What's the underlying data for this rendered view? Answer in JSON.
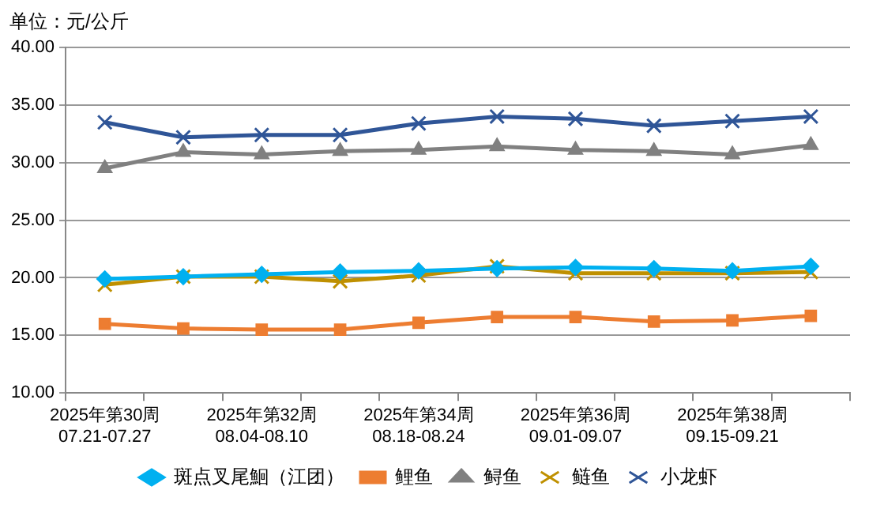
{
  "chart_data": {
    "type": "line",
    "ylabel": "单位：元/公斤",
    "categories": [
      "2025年第30周\n07.21-07.27",
      null,
      "2025年第32周\n08.04-08.10",
      null,
      "2025年第34周\n08.18-08.24",
      null,
      "2025年第36周\n09.01-09.07",
      null,
      "2025年第38周\n09.15-09.21",
      null
    ],
    "series": [
      {
        "name": "斑点叉尾鮰（江团）",
        "color": "#00b0f0",
        "marker": "diamond",
        "values": [
          19.9,
          20.1,
          20.3,
          20.5,
          20.6,
          20.8,
          20.9,
          20.8,
          20.6,
          21.0
        ]
      },
      {
        "name": "鲤鱼",
        "color": "#ed7d31",
        "marker": "square",
        "values": [
          16.0,
          15.6,
          15.5,
          15.5,
          16.1,
          16.6,
          16.6,
          16.2,
          16.3,
          16.7
        ]
      },
      {
        "name": "鲟鱼",
        "color": "#808080",
        "marker": "triangle",
        "values": [
          29.5,
          30.9,
          30.7,
          31.0,
          31.1,
          31.4,
          31.1,
          31.0,
          30.7,
          31.5
        ]
      },
      {
        "name": "鲢鱼",
        "color": "#bf9000",
        "marker": "cross",
        "values": [
          19.4,
          20.1,
          20.1,
          19.7,
          20.2,
          21.0,
          20.4,
          20.4,
          20.4,
          20.5
        ]
      },
      {
        "name": "小龙虾",
        "color": "#2f5597",
        "marker": "cross",
        "values": [
          33.5,
          32.2,
          32.4,
          32.4,
          33.4,
          34.0,
          33.8,
          33.2,
          33.6,
          34.0
        ]
      }
    ],
    "ylim": [
      10,
      40
    ],
    "yticks": [
      {
        "value": 10,
        "label": "10.00"
      },
      {
        "value": 15,
        "label": "15.00"
      },
      {
        "value": 20,
        "label": "20.00"
      },
      {
        "value": 25,
        "label": "25.00"
      },
      {
        "value": 30,
        "label": "30.00"
      },
      {
        "value": 35,
        "label": "35.00"
      },
      {
        "value": 40,
        "label": "40.00"
      }
    ],
    "grid": "y",
    "legend": "bottom",
    "line_style": "solid"
  }
}
